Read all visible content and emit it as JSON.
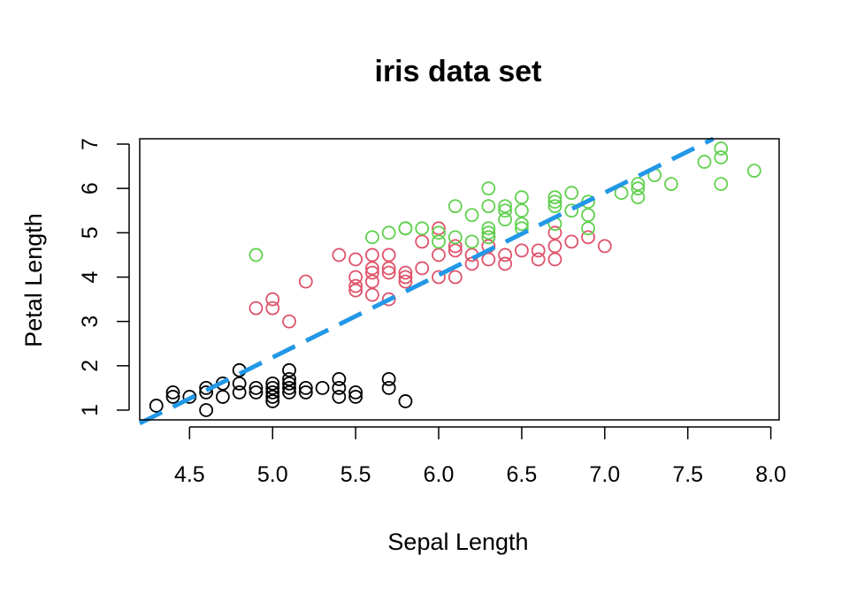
{
  "chart_data": {
    "type": "scatter",
    "title": "iris data set",
    "xlabel": "Sepal Length",
    "ylabel": "Petal Length",
    "xlim": [
      4.2,
      8.05
    ],
    "ylim": [
      0.78,
      7.12
    ],
    "xticks": [
      "4.5",
      "5.0",
      "5.5",
      "6.0",
      "6.5",
      "7.0",
      "7.5",
      "8.0"
    ],
    "yticks": [
      "1",
      "2",
      "3",
      "4",
      "5",
      "6",
      "7"
    ],
    "grid": false,
    "legend": "none",
    "series": [
      {
        "color": "#000000",
        "marker": "open-circle",
        "points": [
          [
            4.3,
            1.1
          ],
          [
            4.4,
            1.4
          ],
          [
            4.4,
            1.3
          ],
          [
            4.5,
            1.3
          ],
          [
            4.6,
            1.5
          ],
          [
            4.6,
            1.4
          ],
          [
            4.6,
            1.0
          ],
          [
            4.7,
            1.6
          ],
          [
            4.7,
            1.3
          ],
          [
            4.8,
            1.9
          ],
          [
            4.8,
            1.6
          ],
          [
            4.8,
            1.4
          ],
          [
            4.9,
            1.5
          ],
          [
            4.9,
            1.4
          ],
          [
            5.0,
            1.6
          ],
          [
            5.0,
            1.5
          ],
          [
            5.0,
            1.4
          ],
          [
            5.0,
            1.3
          ],
          [
            5.0,
            1.2
          ],
          [
            5.1,
            1.9
          ],
          [
            5.1,
            1.7
          ],
          [
            5.1,
            1.6
          ],
          [
            5.1,
            1.5
          ],
          [
            5.1,
            1.4
          ],
          [
            5.2,
            1.5
          ],
          [
            5.2,
            1.4
          ],
          [
            5.3,
            1.5
          ],
          [
            5.4,
            1.7
          ],
          [
            5.4,
            1.5
          ],
          [
            5.4,
            1.3
          ],
          [
            5.5,
            1.4
          ],
          [
            5.5,
            1.3
          ],
          [
            5.7,
            1.7
          ],
          [
            5.7,
            1.5
          ],
          [
            5.8,
            1.2
          ]
        ]
      },
      {
        "color": "#DF536B",
        "marker": "open-circle",
        "points": [
          [
            4.9,
            3.3
          ],
          [
            5.0,
            3.5
          ],
          [
            5.0,
            3.3
          ],
          [
            5.1,
            3.0
          ],
          [
            5.2,
            3.9
          ],
          [
            5.4,
            4.5
          ],
          [
            5.5,
            4.4
          ],
          [
            5.5,
            4.0
          ],
          [
            5.5,
            3.8
          ],
          [
            5.5,
            3.7
          ],
          [
            5.6,
            4.5
          ],
          [
            5.6,
            4.2
          ],
          [
            5.6,
            4.1
          ],
          [
            5.6,
            3.9
          ],
          [
            5.6,
            3.6
          ],
          [
            5.7,
            4.5
          ],
          [
            5.7,
            4.2
          ],
          [
            5.7,
            4.1
          ],
          [
            5.7,
            3.5
          ],
          [
            5.8,
            4.1
          ],
          [
            5.8,
            4.0
          ],
          [
            5.8,
            3.9
          ],
          [
            5.9,
            4.8
          ],
          [
            5.9,
            4.2
          ],
          [
            6.0,
            5.1
          ],
          [
            6.0,
            4.5
          ],
          [
            6.0,
            4.0
          ],
          [
            6.1,
            4.7
          ],
          [
            6.1,
            4.6
          ],
          [
            6.1,
            4.0
          ],
          [
            6.2,
            4.5
          ],
          [
            6.2,
            4.3
          ],
          [
            6.3,
            4.9
          ],
          [
            6.3,
            4.7
          ],
          [
            6.3,
            4.4
          ],
          [
            6.4,
            4.5
          ],
          [
            6.4,
            4.3
          ],
          [
            6.5,
            4.6
          ],
          [
            6.6,
            4.6
          ],
          [
            6.6,
            4.4
          ],
          [
            6.7,
            5.0
          ],
          [
            6.7,
            4.7
          ],
          [
            6.7,
            4.4
          ],
          [
            6.8,
            4.8
          ],
          [
            6.9,
            4.9
          ],
          [
            7.0,
            4.7
          ]
        ]
      },
      {
        "color": "#61D04F",
        "marker": "open-circle",
        "points": [
          [
            4.9,
            4.5
          ],
          [
            5.6,
            4.9
          ],
          [
            5.7,
            5.0
          ],
          [
            5.8,
            5.1
          ],
          [
            5.8,
            5.1
          ],
          [
            5.9,
            5.1
          ],
          [
            6.0,
            5.0
          ],
          [
            6.0,
            4.8
          ],
          [
            6.1,
            5.6
          ],
          [
            6.1,
            4.9
          ],
          [
            6.2,
            5.4
          ],
          [
            6.2,
            4.8
          ],
          [
            6.3,
            6.0
          ],
          [
            6.3,
            5.6
          ],
          [
            6.3,
            5.1
          ],
          [
            6.3,
            5.0
          ],
          [
            6.3,
            4.9
          ],
          [
            6.4,
            5.6
          ],
          [
            6.4,
            5.5
          ],
          [
            6.4,
            5.3
          ],
          [
            6.5,
            5.8
          ],
          [
            6.5,
            5.5
          ],
          [
            6.5,
            5.2
          ],
          [
            6.5,
            5.1
          ],
          [
            6.7,
            5.8
          ],
          [
            6.7,
            5.7
          ],
          [
            6.7,
            5.6
          ],
          [
            6.7,
            5.2
          ],
          [
            6.8,
            5.9
          ],
          [
            6.8,
            5.5
          ],
          [
            6.9,
            5.7
          ],
          [
            6.9,
            5.4
          ],
          [
            6.9,
            5.1
          ],
          [
            7.1,
            5.9
          ],
          [
            7.2,
            6.1
          ],
          [
            7.2,
            6.0
          ],
          [
            7.2,
            5.8
          ],
          [
            7.3,
            6.3
          ],
          [
            7.4,
            6.1
          ],
          [
            7.6,
            6.6
          ],
          [
            7.7,
            6.9
          ],
          [
            7.7,
            6.7
          ],
          [
            7.7,
            6.1
          ],
          [
            7.9,
            6.4
          ]
        ]
      }
    ],
    "fit_line": {
      "color": "#2297E6",
      "style": "dashed",
      "intercept": -7.101,
      "slope": 1.858
    }
  }
}
